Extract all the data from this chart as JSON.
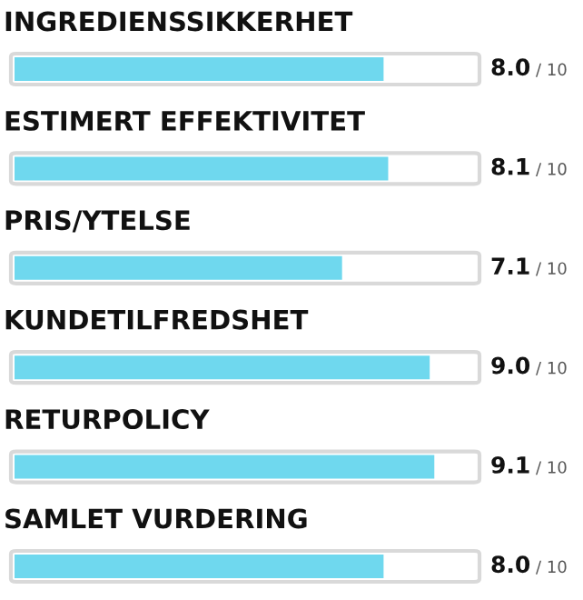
{
  "chart_data": {
    "type": "bar",
    "orientation": "horizontal",
    "categories": [
      "INGREDIENSSIKKERHET",
      "ESTIMERT EFFEKTIVITET",
      "PRIS/YTELSE",
      "KUNDETILFREDSHET",
      "RETURPOLICY",
      "SAMLET VURDERING"
    ],
    "values": [
      8.0,
      8.1,
      7.1,
      9.0,
      9.1,
      8.0
    ],
    "value_labels": [
      "8.0",
      "8.1",
      "7.1",
      "9.0",
      "9.1",
      "8.0"
    ],
    "annotations": [
      "/ 10",
      "/ 10",
      "/ 10",
      "/ 10",
      "/ 10",
      "/ 10"
    ],
    "color": "#6fd8ee",
    "xlim": [
      0,
      10
    ]
  }
}
